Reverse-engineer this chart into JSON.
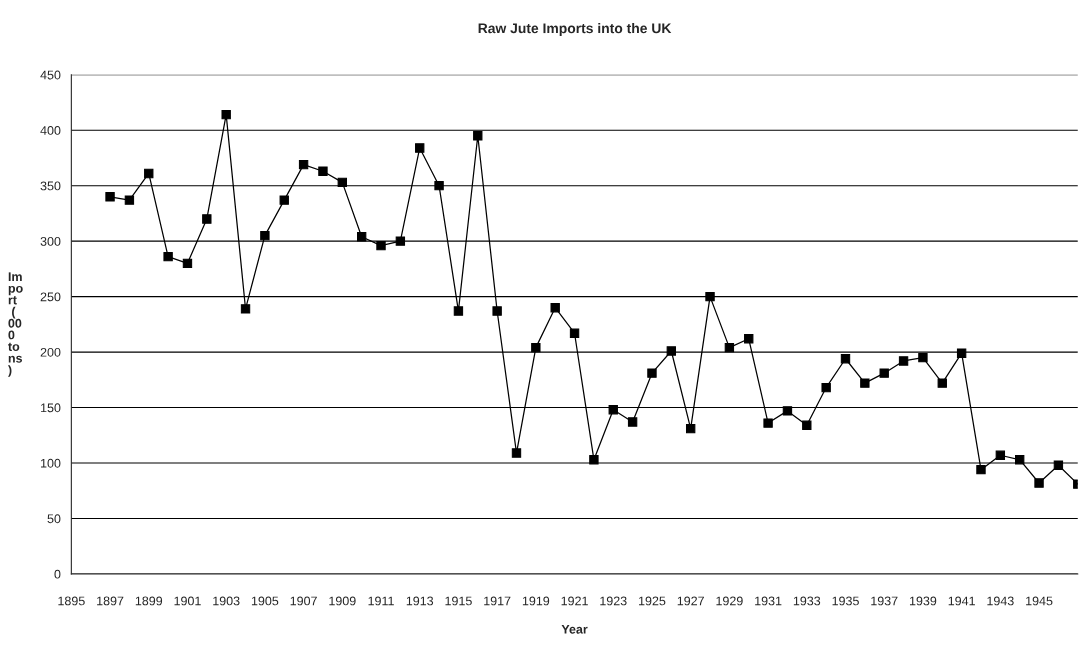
{
  "chart_data": {
    "type": "line",
    "title": "Raw Jute Imports into the UK",
    "xlabel": "Year",
    "ylabel": "Import (000 tons)",
    "x": [
      1897,
      1898,
      1899,
      1900,
      1901,
      1902,
      1903,
      1904,
      1905,
      1906,
      1907,
      1908,
      1909,
      1910,
      1911,
      1912,
      1913,
      1914,
      1915,
      1916,
      1917,
      1918,
      1919,
      1920,
      1921,
      1922,
      1923,
      1924,
      1925,
      1926,
      1927,
      1928,
      1929,
      1930,
      1931,
      1932,
      1933,
      1934,
      1935,
      1936,
      1937,
      1938,
      1939,
      1940,
      1941,
      1942,
      1943,
      1944,
      1945,
      1946,
      1947
    ],
    "values": [
      340,
      337,
      361,
      286,
      280,
      320,
      414,
      239,
      305,
      337,
      369,
      363,
      353,
      304,
      296,
      300,
      384,
      350,
      237,
      395,
      237,
      109,
      204,
      240,
      217,
      103,
      148,
      137,
      181,
      201,
      131,
      250,
      204,
      212,
      136,
      147,
      134,
      168,
      194,
      172,
      181,
      192,
      195,
      172,
      199,
      94,
      107,
      103,
      82,
      98,
      81
    ],
    "color": "#000000",
    "marker": "square",
    "line_style": "solid",
    "grid": "y",
    "xlim": [
      1895,
      1947
    ],
    "xticks": [
      1895,
      1897,
      1899,
      1901,
      1903,
      1905,
      1907,
      1909,
      1911,
      1913,
      1915,
      1917,
      1919,
      1921,
      1923,
      1925,
      1927,
      1929,
      1931,
      1933,
      1935,
      1937,
      1939,
      1941,
      1943,
      1945
    ],
    "ylim": [
      0,
      450
    ],
    "yticks": [
      0,
      50,
      100,
      150,
      200,
      250,
      300,
      350,
      400,
      450
    ]
  }
}
